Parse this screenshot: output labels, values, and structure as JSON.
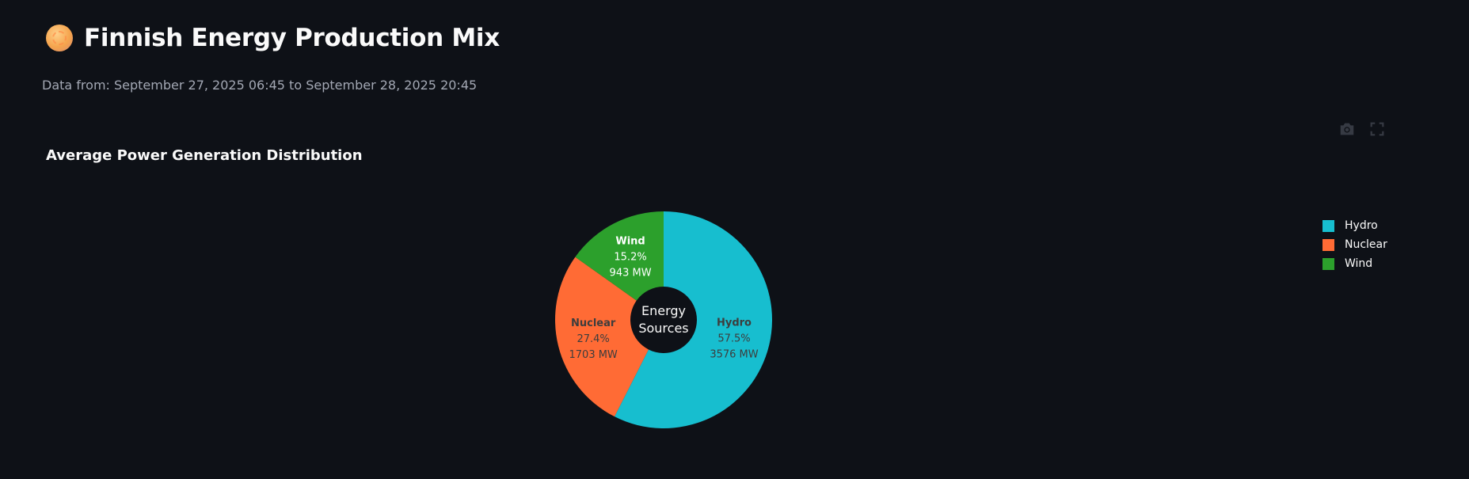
{
  "header": {
    "title": "Finnish Energy Production Mix",
    "title_icon": "sun-globe-icon",
    "subtitle": "Data from: September 27, 2025 06:45 to September 28, 2025 20:45"
  },
  "toolbar": {
    "camera_icon": "camera-icon",
    "fullscreen_icon": "fullscreen-icon"
  },
  "chart_data": {
    "type": "pie",
    "hole": true,
    "title": "Average Power Generation Distribution",
    "center_label": [
      "Energy",
      "Sources"
    ],
    "legend_position": "top-right",
    "slices": [
      {
        "label": "Hydro",
        "percent": "57.5%",
        "value": 3576,
        "value_label": "3576 MW",
        "color": "#17becf"
      },
      {
        "label": "Nuclear",
        "percent": "27.4%",
        "value": 1703,
        "value_label": "1703 MW",
        "color": "#ff6b35"
      },
      {
        "label": "Wind",
        "percent": "15.2%",
        "value": 943,
        "value_label": "943 MW",
        "color": "#2ca02c"
      }
    ]
  },
  "colors": {
    "background": "#0e1117",
    "text": "#fafafa",
    "muted_text": "#a3a8b4"
  }
}
